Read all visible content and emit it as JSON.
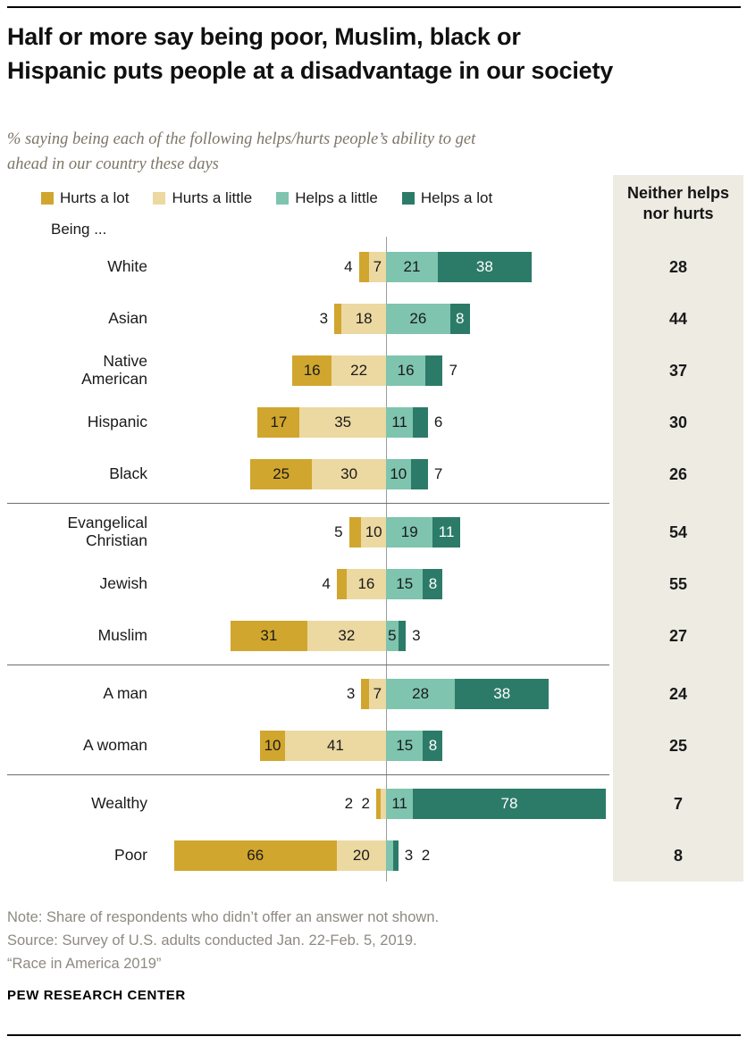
{
  "page": {
    "title_lines": [
      "Half or more say being poor, Muslim, black or",
      "Hispanic puts people at a disadvantage in our society"
    ],
    "subtitle_lines": [
      "% saying being each of the following helps/hurts people’s ability to get",
      "ahead in our country these days"
    ],
    "being_label": "Being ...",
    "footer": "PEW RESEARCH CENTER",
    "notes": [
      "Note: Share of respondents who didn’t offer an answer not shown.",
      "Source: Survey of U.S. adults conducted Jan. 22-Feb. 5, 2019.",
      "“Race in America 2019”"
    ]
  },
  "colors": {
    "hurts_a_lot": "#d1a62e",
    "hurts_a_little": "#ecd8a1",
    "helps_a_little": "#7ec4af",
    "helps_a_lot": "#2c7b68",
    "neither_panel": "#eeebe3",
    "axis_line": "#9c9c9c",
    "separator": "#6e6e6e",
    "value_text_dark": "#1a1a1a",
    "value_text_light": "#ffffff"
  },
  "chart_data": {
    "type": "bar",
    "variant": "diverging_stacked_horizontal",
    "title": "Half or more say being poor, Muslim, black or Hispanic puts people at a disadvantage in our society",
    "subtitle": "% saying being each of the following helps/hurts people’s ability to get ahead in our country these days",
    "unit": "percent",
    "legend_position": "top",
    "axis": {
      "zero_line": true,
      "hurts_direction": "left",
      "helps_direction": "right"
    },
    "categories": [
      "White",
      "Asian",
      "Native American",
      "Hispanic",
      "Black",
      "Evangelical Christian",
      "Jewish",
      "Muslim",
      "A man",
      "A woman",
      "Wealthy",
      "Poor"
    ],
    "series": [
      {
        "name": "Hurts a lot",
        "color": "#d1a62e",
        "values": [
          4,
          3,
          16,
          17,
          25,
          5,
          4,
          31,
          3,
          10,
          2,
          66
        ]
      },
      {
        "name": "Hurts a little",
        "color": "#ecd8a1",
        "values": [
          7,
          18,
          22,
          35,
          30,
          10,
          16,
          32,
          7,
          41,
          2,
          20
        ]
      },
      {
        "name": "Helps a little",
        "color": "#7ec4af",
        "values": [
          21,
          26,
          16,
          11,
          10,
          19,
          15,
          5,
          28,
          15,
          11,
          3
        ]
      },
      {
        "name": "Helps a lot",
        "color": "#2c7b68",
        "values": [
          38,
          8,
          7,
          6,
          7,
          11,
          8,
          3,
          38,
          8,
          78,
          2
        ]
      }
    ],
    "neither_column": {
      "header": "Neither helps nor hurts",
      "values": [
        28,
        44,
        37,
        30,
        26,
        54,
        55,
        27,
        24,
        25,
        7,
        8
      ]
    },
    "group_breaks_after": [
      4,
      7,
      9
    ]
  }
}
